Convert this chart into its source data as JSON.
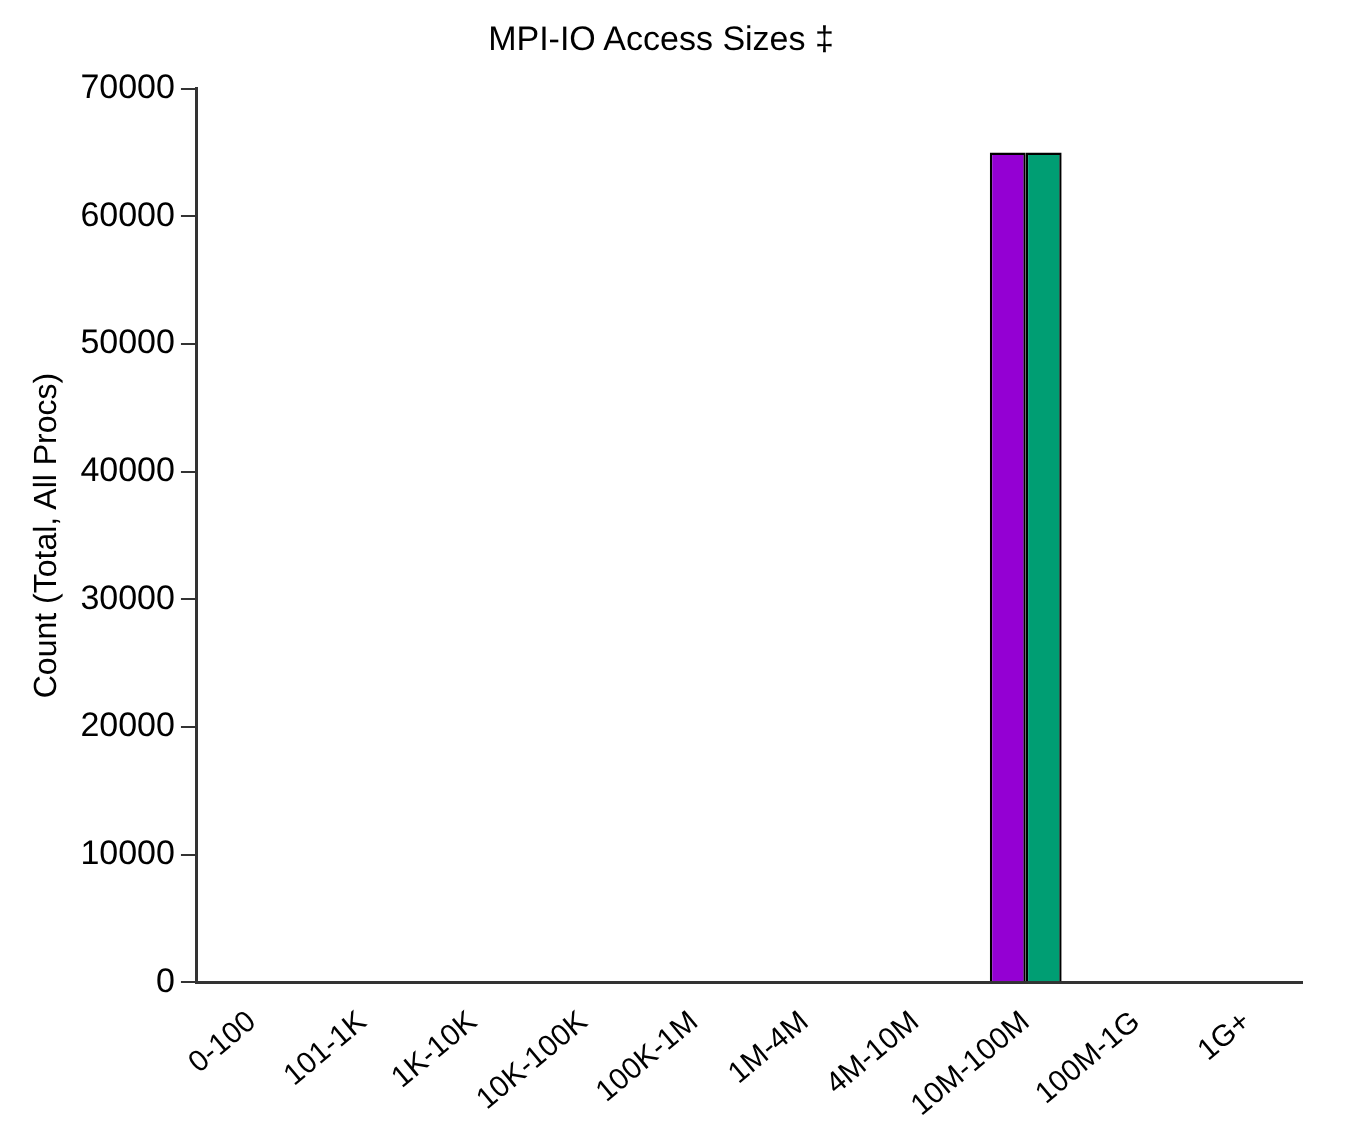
{
  "chart_data": {
    "type": "bar",
    "title": "MPI-IO Access Sizes ‡",
    "ylabel": "Count (Total, All Procs)",
    "categories": [
      "0-100",
      "101-1K",
      "1K-10K",
      "10K-100K",
      "100K-1M",
      "1M-4M",
      "4M-10M",
      "10M-100M",
      "100M-1G",
      "1G+"
    ],
    "series": [
      {
        "color": "#9400d3",
        "values": [
          0,
          0,
          0,
          0,
          0,
          0,
          0,
          65000,
          0,
          0
        ]
      },
      {
        "color": "#009e73",
        "values": [
          0,
          0,
          0,
          0,
          0,
          0,
          0,
          65000,
          0,
          0
        ]
      }
    ],
    "ylim": [
      0,
      70000
    ],
    "yticks": [
      0,
      10000,
      20000,
      30000,
      40000,
      50000,
      60000,
      70000
    ],
    "grid": false,
    "legend": false
  }
}
